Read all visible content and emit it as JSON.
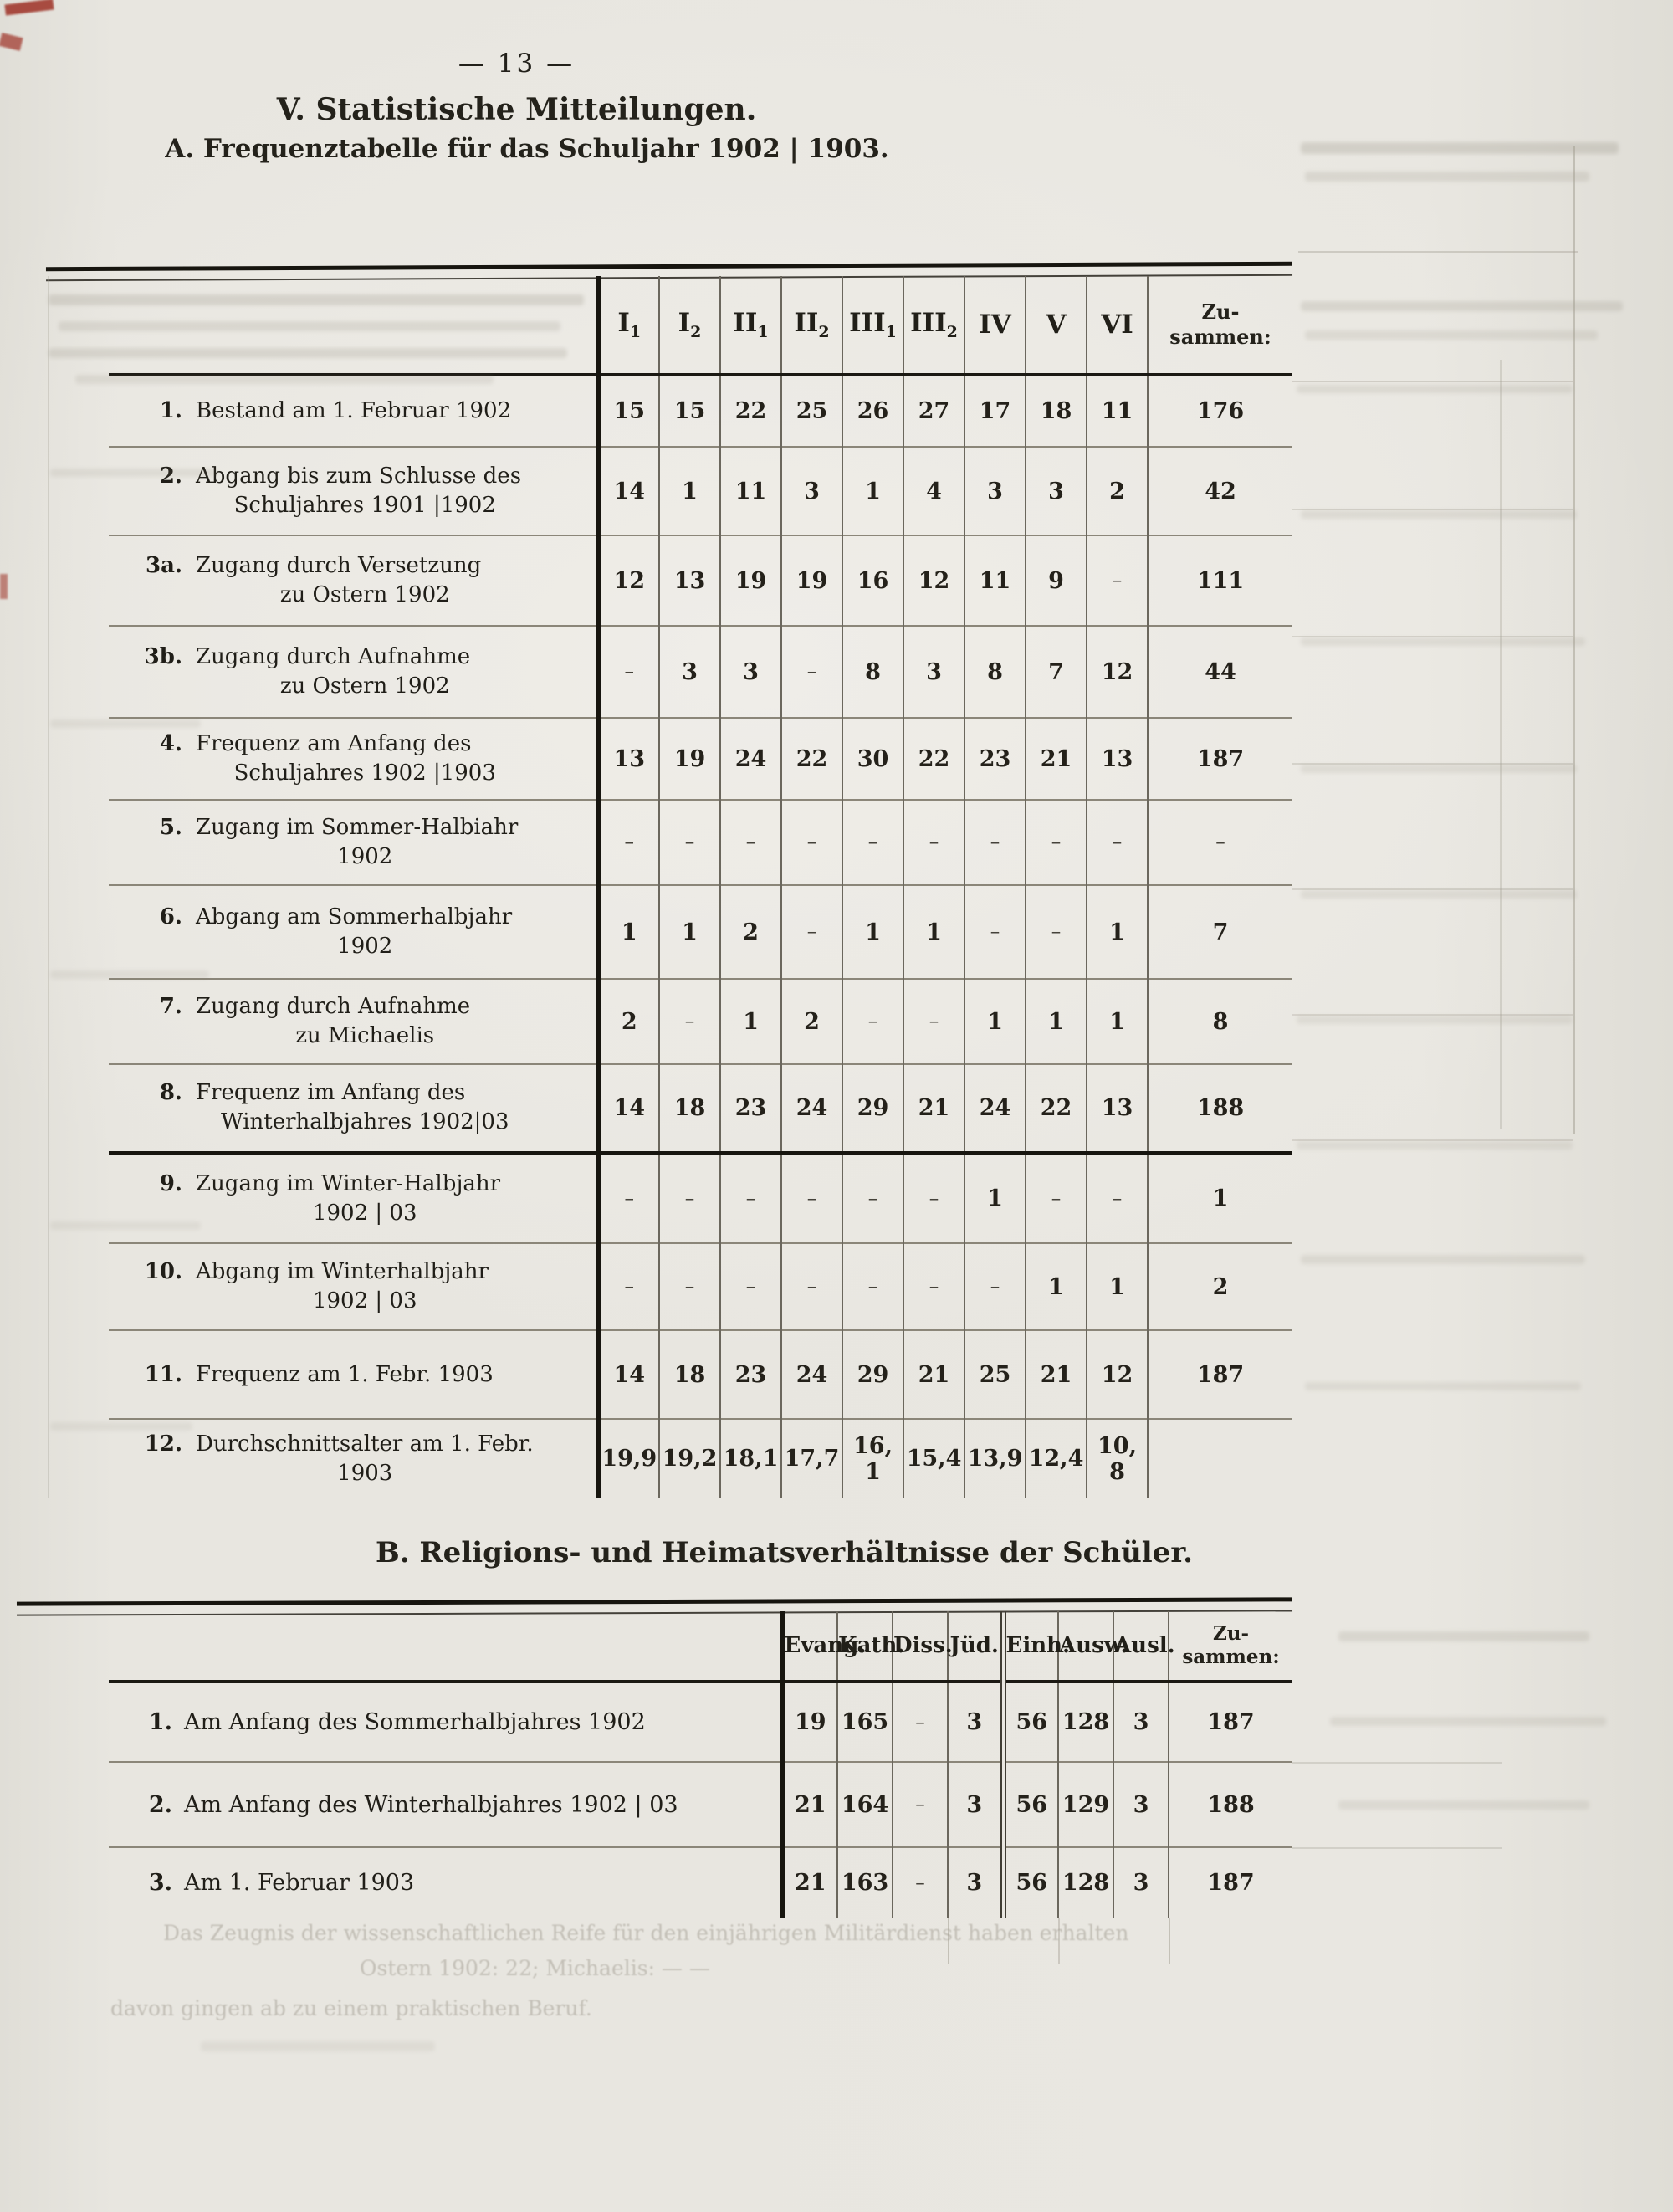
{
  "page": {
    "number": "— 13 —"
  },
  "section_a": {
    "title": "V. Statistische Mitteilungen.",
    "subtitle": "A. Frequenztabelle für das Schuljahr 1902 | 1903.",
    "col_headers": [
      {
        "base": "I",
        "sub": "1"
      },
      {
        "base": "I",
        "sub": "2"
      },
      {
        "base": "II",
        "sub": "1"
      },
      {
        "base": "II",
        "sub": "2"
      },
      {
        "base": "III",
        "sub": "1"
      },
      {
        "base": "III",
        "sub": "2"
      },
      {
        "base": "IV",
        "sub": ""
      },
      {
        "base": "V",
        "sub": ""
      },
      {
        "base": "VI",
        "sub": ""
      }
    ],
    "total_header": [
      "Zu-",
      "sammen:"
    ],
    "rows": [
      {
        "num": "1.",
        "lines": [
          "Bestand am 1. Februar 1902"
        ],
        "values": [
          "15",
          "15",
          "22",
          "25",
          "26",
          "27",
          "17",
          "18",
          "11"
        ],
        "total": "176"
      },
      {
        "num": "2.",
        "lines": [
          "Abgang bis zum Schlusse des",
          "Schuljahres 1901 |1902"
        ],
        "values": [
          "14",
          "1",
          "11",
          "3",
          "1",
          "4",
          "3",
          "3",
          "2"
        ],
        "total": "42"
      },
      {
        "num": "3a.",
        "lines": [
          "Zugang durch Versetzung",
          "zu Ostern 1902"
        ],
        "values": [
          "12",
          "13",
          "19",
          "19",
          "16",
          "12",
          "11",
          "9",
          "–"
        ],
        "total": "111"
      },
      {
        "num": "3b.",
        "lines": [
          "Zugang durch Aufnahme",
          "zu Ostern 1902"
        ],
        "values": [
          "–",
          "3",
          "3",
          "–",
          "8",
          "3",
          "8",
          "7",
          "12"
        ],
        "total": "44"
      },
      {
        "num": "4.",
        "lines": [
          "Frequenz am Anfang des",
          "Schuljahres 1902 |1903"
        ],
        "values": [
          "13",
          "19",
          "24",
          "22",
          "30",
          "22",
          "23",
          "21",
          "13"
        ],
        "total": "187"
      },
      {
        "num": "5.",
        "lines": [
          "Zugang im Sommer-Halbiahr",
          "1902"
        ],
        "values": [
          "–",
          "–",
          "–",
          "–",
          "–",
          "–",
          "–",
          "–",
          "–"
        ],
        "total": "–"
      },
      {
        "num": "6.",
        "lines": [
          "Abgang am Sommerhalbjahr",
          "1902"
        ],
        "values": [
          "1",
          "1",
          "2",
          "–",
          "1",
          "1",
          "–",
          "–",
          "1"
        ],
        "total": "7"
      },
      {
        "num": "7.",
        "lines": [
          "Zugang durch Aufnahme",
          "zu Michaelis"
        ],
        "values": [
          "2",
          "–",
          "1",
          "2",
          "–",
          "–",
          "1",
          "1",
          "1"
        ],
        "total": "8"
      },
      {
        "num": "8.",
        "lines": [
          "Frequenz im Anfang des",
          "Winterhalbjahres 1902|03"
        ],
        "values": [
          "14",
          "18",
          "23",
          "24",
          "29",
          "21",
          "24",
          "22",
          "13"
        ],
        "total": "188"
      },
      {
        "num": "9.",
        "lines": [
          "Zugang im Winter-Halbjahr",
          "1902 | 03"
        ],
        "values": [
          "–",
          "–",
          "–",
          "–",
          "–",
          "–",
          "1",
          "–",
          "–"
        ],
        "total": "1"
      },
      {
        "num": "10.",
        "lines": [
          "Abgang im Winterhalbjahr",
          "1902 | 03"
        ],
        "values": [
          "–",
          "–",
          "–",
          "–",
          "–",
          "–",
          "–",
          "1",
          "1"
        ],
        "total": "2"
      },
      {
        "num": "11.",
        "lines": [
          "Frequenz am 1. Febr. 1903"
        ],
        "values": [
          "14",
          "18",
          "23",
          "24",
          "29",
          "21",
          "25",
          "21",
          "12"
        ],
        "total": "187"
      },
      {
        "num": "12.",
        "lines": [
          "Durchschnittsalter am 1. Febr.",
          "1903"
        ],
        "values": [
          "19,9",
          "19,2",
          "18,1",
          "17,7",
          "16, 1",
          "15,4",
          "13,9",
          "12,4",
          "10, 8"
        ],
        "total": ""
      }
    ]
  },
  "section_b": {
    "title": "B. Religions- und Heimatsverhältnisse der Schüler.",
    "col_headers": [
      {
        "base": "Evang.",
        "sub": ""
      },
      {
        "base": "Kath.",
        "sub": ""
      },
      {
        "base": "Diss.",
        "sub": ""
      },
      {
        "base": "Jüd.",
        "sub": ""
      },
      {
        "base": "Einh.",
        "sub": ""
      },
      {
        "base": "Ausw.",
        "sub": ""
      },
      {
        "base": "Ausl.",
        "sub": ""
      }
    ],
    "total_header": [
      "Zu-",
      "sammen:"
    ],
    "rows": [
      {
        "num": "1.",
        "lines": [
          "Am Anfang des Sommerhalbjahres 1902"
        ],
        "values": [
          "19",
          "165",
          "–",
          "3",
          "56",
          "128",
          "3"
        ],
        "total": "187"
      },
      {
        "num": "2.",
        "lines": [
          "Am Anfang des Winterhalbjahres 1902 | 03"
        ],
        "values": [
          "21",
          "164",
          "–",
          "3",
          "56",
          "129",
          "3"
        ],
        "total": "188"
      },
      {
        "num": "3.",
        "lines": [
          "Am 1. Februar 1903"
        ],
        "values": [
          "21",
          "163",
          "–",
          "3",
          "56",
          "128",
          "3"
        ],
        "total": "187"
      }
    ]
  },
  "ghost_text": {
    "lines": [
      "Das Zeugnis der wissenschaftlichen Reife für den einjährigen Militärdienst haben erhalten",
      "Ostern 1902: 22; Michaelis: — —",
      "davon gingen ab zu einem praktischen Beruf."
    ]
  },
  "colors": {
    "ink": "#17150f",
    "paper": "#e9e7e1",
    "red_mark": "#9e3126"
  }
}
